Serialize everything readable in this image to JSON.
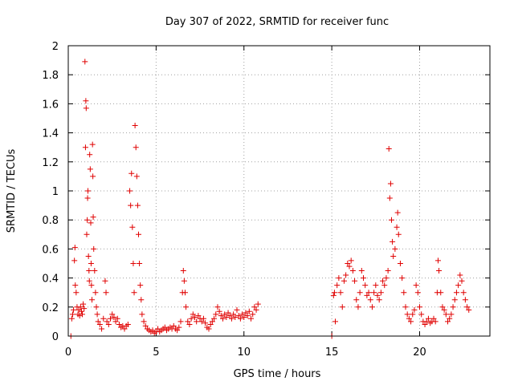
{
  "colors": {
    "series": "#e00000",
    "axis": "#000000",
    "grid": "#a0a0a0",
    "background": "#ffffff"
  },
  "chart_data": {
    "type": "scatter",
    "marker": "plus",
    "title": "Day 307 of 2022, SRMTID for receiver func",
    "xlabel": "GPS time / hours",
    "ylabel": "SRMTID / TECUs",
    "xlim": [
      0,
      24
    ],
    "ylim": [
      0,
      2
    ],
    "xticks": [
      0,
      5,
      10,
      15,
      20
    ],
    "yticks": [
      0,
      0.2,
      0.4,
      0.6,
      0.8,
      1,
      1.2,
      1.4,
      1.6,
      1.8,
      2
    ],
    "xtick_labels": [
      "0",
      "5",
      "10",
      "15",
      "20"
    ],
    "ytick_labels": [
      "0",
      "0.2",
      "0.4",
      "0.6",
      "0.8",
      "1",
      "1.2",
      "1.4",
      "1.6",
      "1.8",
      "2"
    ],
    "grid": true,
    "series": [
      {
        "name": "SRMTID",
        "points": [
          [
            0.15,
            0.0
          ],
          [
            0.2,
            0.12
          ],
          [
            0.25,
            0.15
          ],
          [
            0.3,
            0.18
          ],
          [
            0.35,
            0.52
          ],
          [
            0.38,
            0.61
          ],
          [
            0.4,
            0.35
          ],
          [
            0.45,
            0.3
          ],
          [
            0.5,
            0.2
          ],
          [
            0.55,
            0.15
          ],
          [
            0.6,
            0.18
          ],
          [
            0.65,
            0.14
          ],
          [
            0.7,
            0.2
          ],
          [
            0.75,
            0.17
          ],
          [
            0.8,
            0.15
          ],
          [
            0.85,
            0.22
          ],
          [
            0.9,
            0.19
          ],
          [
            0.95,
            1.89
          ],
          [
            0.98,
            1.3
          ],
          [
            1.0,
            1.62
          ],
          [
            1.02,
            1.57
          ],
          [
            1.05,
            0.7
          ],
          [
            1.08,
            0.8
          ],
          [
            1.1,
            0.95
          ],
          [
            1.12,
            1.0
          ],
          [
            1.15,
            0.55
          ],
          [
            1.18,
            0.45
          ],
          [
            1.2,
            0.38
          ],
          [
            1.22,
            1.25
          ],
          [
            1.25,
            1.15
          ],
          [
            1.28,
            0.78
          ],
          [
            1.3,
            0.5
          ],
          [
            1.32,
            0.35
          ],
          [
            1.35,
            0.25
          ],
          [
            1.38,
            1.32
          ],
          [
            1.4,
            1.1
          ],
          [
            1.42,
            0.82
          ],
          [
            1.45,
            0.6
          ],
          [
            1.5,
            0.45
          ],
          [
            1.55,
            0.3
          ],
          [
            1.6,
            0.2
          ],
          [
            1.65,
            0.15
          ],
          [
            1.7,
            0.1
          ],
          [
            1.8,
            0.08
          ],
          [
            1.9,
            0.05
          ],
          [
            2.0,
            0.12
          ],
          [
            2.1,
            0.38
          ],
          [
            2.15,
            0.3
          ],
          [
            2.2,
            0.1
          ],
          [
            2.3,
            0.08
          ],
          [
            2.4,
            0.12
          ],
          [
            2.5,
            0.15
          ],
          [
            2.6,
            0.13
          ],
          [
            2.7,
            0.1
          ],
          [
            2.8,
            0.12
          ],
          [
            2.9,
            0.08
          ],
          [
            3.0,
            0.06
          ],
          [
            3.1,
            0.07
          ],
          [
            3.2,
            0.05
          ],
          [
            3.3,
            0.07
          ],
          [
            3.4,
            0.08
          ],
          [
            3.5,
            1.0
          ],
          [
            3.55,
            0.9
          ],
          [
            3.6,
            1.12
          ],
          [
            3.65,
            0.75
          ],
          [
            3.7,
            0.5
          ],
          [
            3.75,
            0.3
          ],
          [
            3.8,
            1.45
          ],
          [
            3.85,
            1.3
          ],
          [
            3.9,
            1.1
          ],
          [
            3.95,
            0.9
          ],
          [
            4.0,
            0.7
          ],
          [
            4.05,
            0.5
          ],
          [
            4.1,
            0.35
          ],
          [
            4.15,
            0.25
          ],
          [
            4.2,
            0.15
          ],
          [
            4.3,
            0.1
          ],
          [
            4.4,
            0.07
          ],
          [
            4.5,
            0.05
          ],
          [
            4.6,
            0.04
          ],
          [
            4.7,
            0.03
          ],
          [
            4.8,
            0.04
          ],
          [
            4.9,
            0.02
          ],
          [
            5.0,
            0.03
          ],
          [
            5.1,
            0.05
          ],
          [
            5.2,
            0.03
          ],
          [
            5.3,
            0.04
          ],
          [
            5.4,
            0.05
          ],
          [
            5.5,
            0.06
          ],
          [
            5.6,
            0.04
          ],
          [
            5.7,
            0.05
          ],
          [
            5.8,
            0.06
          ],
          [
            5.9,
            0.05
          ],
          [
            6.0,
            0.07
          ],
          [
            6.1,
            0.05
          ],
          [
            6.2,
            0.04
          ],
          [
            6.3,
            0.06
          ],
          [
            6.4,
            0.1
          ],
          [
            6.5,
            0.3
          ],
          [
            6.55,
            0.45
          ],
          [
            6.6,
            0.38
          ],
          [
            6.65,
            0.3
          ],
          [
            6.7,
            0.2
          ],
          [
            6.8,
            0.1
          ],
          [
            6.9,
            0.08
          ],
          [
            7.0,
            0.12
          ],
          [
            7.1,
            0.15
          ],
          [
            7.2,
            0.13
          ],
          [
            7.3,
            0.1
          ],
          [
            7.4,
            0.14
          ],
          [
            7.5,
            0.12
          ],
          [
            7.6,
            0.1
          ],
          [
            7.7,
            0.12
          ],
          [
            7.8,
            0.09
          ],
          [
            7.9,
            0.06
          ],
          [
            8.0,
            0.05
          ],
          [
            8.1,
            0.08
          ],
          [
            8.2,
            0.1
          ],
          [
            8.3,
            0.12
          ],
          [
            8.4,
            0.15
          ],
          [
            8.5,
            0.2
          ],
          [
            8.6,
            0.17
          ],
          [
            8.7,
            0.14
          ],
          [
            8.8,
            0.12
          ],
          [
            8.9,
            0.15
          ],
          [
            9.0,
            0.13
          ],
          [
            9.1,
            0.16
          ],
          [
            9.2,
            0.14
          ],
          [
            9.3,
            0.12
          ],
          [
            9.4,
            0.15
          ],
          [
            9.5,
            0.13
          ],
          [
            9.6,
            0.18
          ],
          [
            9.7,
            0.14
          ],
          [
            9.8,
            0.12
          ],
          [
            9.9,
            0.15
          ],
          [
            10.0,
            0.13
          ],
          [
            10.1,
            0.16
          ],
          [
            10.2,
            0.14
          ],
          [
            10.3,
            0.17
          ],
          [
            10.4,
            0.12
          ],
          [
            10.5,
            0.15
          ],
          [
            10.6,
            0.2
          ],
          [
            10.7,
            0.18
          ],
          [
            10.8,
            0.22
          ],
          [
            15.0,
            0.0
          ],
          [
            15.1,
            0.28
          ],
          [
            15.15,
            0.3
          ],
          [
            15.2,
            0.1
          ],
          [
            15.3,
            0.35
          ],
          [
            15.4,
            0.4
          ],
          [
            15.5,
            0.3
          ],
          [
            15.6,
            0.2
          ],
          [
            15.7,
            0.38
          ],
          [
            15.8,
            0.42
          ],
          [
            15.9,
            0.5
          ],
          [
            16.0,
            0.48
          ],
          [
            16.1,
            0.52
          ],
          [
            16.2,
            0.45
          ],
          [
            16.3,
            0.38
          ],
          [
            16.4,
            0.25
          ],
          [
            16.5,
            0.2
          ],
          [
            16.6,
            0.3
          ],
          [
            16.7,
            0.45
          ],
          [
            16.8,
            0.4
          ],
          [
            16.9,
            0.35
          ],
          [
            17.0,
            0.28
          ],
          [
            17.1,
            0.3
          ],
          [
            17.2,
            0.25
          ],
          [
            17.3,
            0.2
          ],
          [
            17.4,
            0.3
          ],
          [
            17.5,
            0.35
          ],
          [
            17.6,
            0.28
          ],
          [
            17.7,
            0.25
          ],
          [
            17.8,
            0.3
          ],
          [
            17.9,
            0.38
          ],
          [
            18.0,
            0.35
          ],
          [
            18.1,
            0.4
          ],
          [
            18.2,
            0.45
          ],
          [
            18.25,
            1.29
          ],
          [
            18.3,
            0.95
          ],
          [
            18.35,
            1.05
          ],
          [
            18.4,
            0.8
          ],
          [
            18.45,
            0.65
          ],
          [
            18.5,
            0.55
          ],
          [
            18.6,
            0.6
          ],
          [
            18.7,
            0.75
          ],
          [
            18.75,
            0.85
          ],
          [
            18.8,
            0.7
          ],
          [
            18.9,
            0.5
          ],
          [
            19.0,
            0.4
          ],
          [
            19.1,
            0.3
          ],
          [
            19.2,
            0.2
          ],
          [
            19.3,
            0.15
          ],
          [
            19.4,
            0.12
          ],
          [
            19.5,
            0.1
          ],
          [
            19.6,
            0.15
          ],
          [
            19.7,
            0.18
          ],
          [
            19.8,
            0.35
          ],
          [
            19.9,
            0.3
          ],
          [
            20.0,
            0.2
          ],
          [
            20.1,
            0.15
          ],
          [
            20.2,
            0.1
          ],
          [
            20.3,
            0.08
          ],
          [
            20.4,
            0.1
          ],
          [
            20.5,
            0.12
          ],
          [
            20.6,
            0.09
          ],
          [
            20.7,
            0.1
          ],
          [
            20.8,
            0.12
          ],
          [
            20.9,
            0.1
          ],
          [
            21.0,
            0.3
          ],
          [
            21.05,
            0.52
          ],
          [
            21.1,
            0.45
          ],
          [
            21.2,
            0.3
          ],
          [
            21.3,
            0.2
          ],
          [
            21.4,
            0.18
          ],
          [
            21.5,
            0.15
          ],
          [
            21.6,
            0.1
          ],
          [
            21.7,
            0.12
          ],
          [
            21.8,
            0.15
          ],
          [
            21.9,
            0.2
          ],
          [
            22.0,
            0.25
          ],
          [
            22.1,
            0.3
          ],
          [
            22.2,
            0.35
          ],
          [
            22.3,
            0.42
          ],
          [
            22.4,
            0.38
          ],
          [
            22.5,
            0.3
          ],
          [
            22.6,
            0.25
          ],
          [
            22.7,
            0.2
          ],
          [
            22.8,
            0.18
          ]
        ]
      }
    ]
  }
}
